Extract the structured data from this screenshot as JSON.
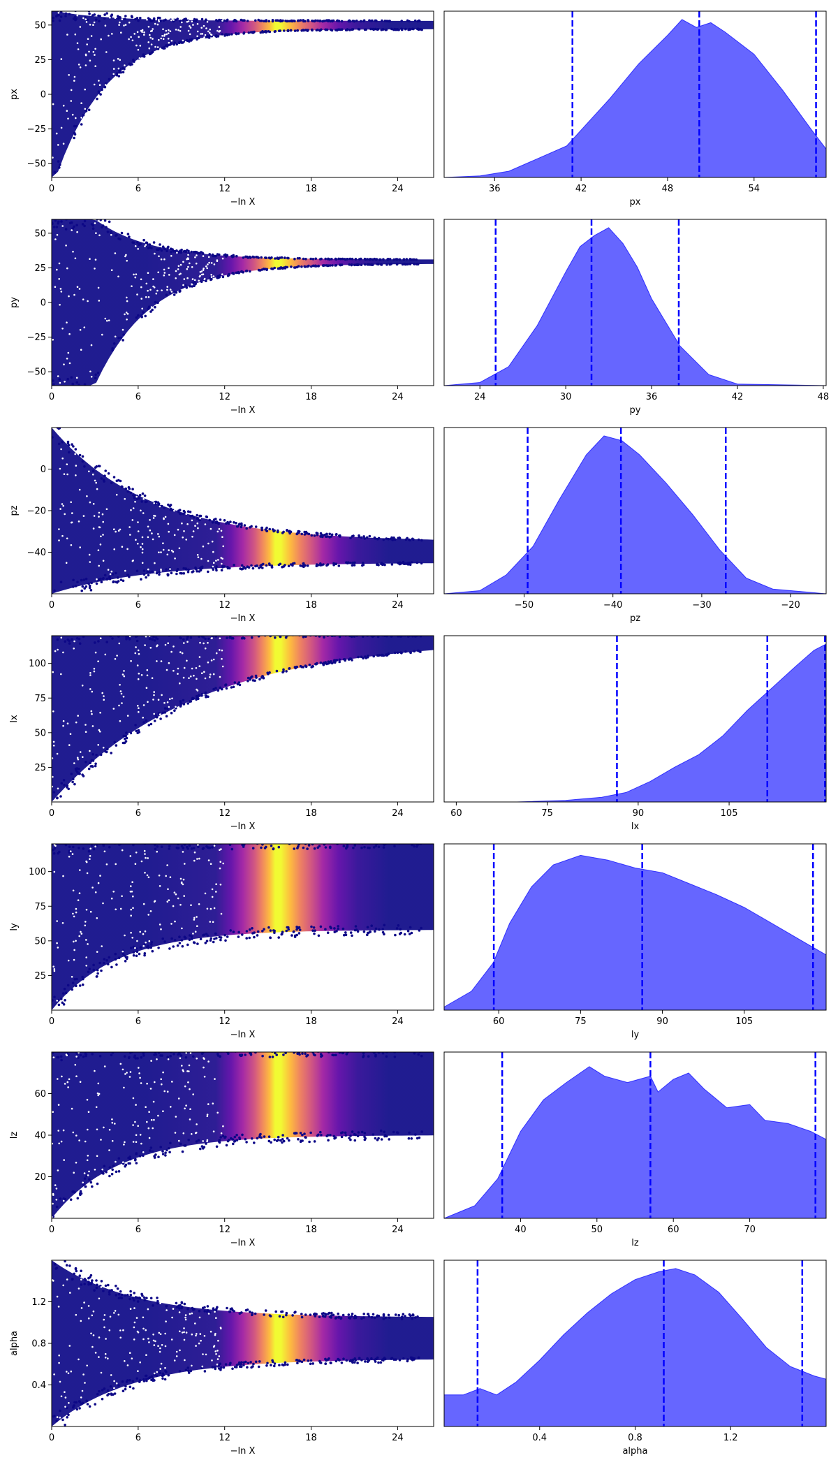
{
  "chart_data": [
    {
      "type": "scatter",
      "ylabel": "px",
      "xlabel": "−ln X",
      "xlim": [
        0,
        26.5
      ],
      "ylim": [
        -60,
        60
      ],
      "xticks": [
        0,
        6,
        12,
        18,
        24
      ],
      "yticks": [
        50,
        25,
        0,
        -25,
        -50
      ],
      "envelope": {
        "start_x": 0.3,
        "lower_start": -60,
        "lower_end": 47,
        "upper_start": 60,
        "upper_end": 53,
        "rate": 0.28
      },
      "colormap_peak_x": 15.5,
      "colormap": "plasma"
    },
    {
      "type": "area",
      "xlabel": "px",
      "xlim": [
        32.5,
        59
      ],
      "xticks": [
        36,
        42,
        48,
        54
      ],
      "quantiles": [
        41.4,
        50.2,
        58.3
      ],
      "density": [
        [
          32.5,
          0.0
        ],
        [
          35,
          0.01
        ],
        [
          37,
          0.04
        ],
        [
          39,
          0.12
        ],
        [
          41,
          0.2
        ],
        [
          42,
          0.3
        ],
        [
          44,
          0.5
        ],
        [
          46,
          0.72
        ],
        [
          48,
          0.9
        ],
        [
          49,
          1.0
        ],
        [
          50,
          0.95
        ],
        [
          51,
          0.98
        ],
        [
          52,
          0.92
        ],
        [
          54,
          0.78
        ],
        [
          56,
          0.55
        ],
        [
          58,
          0.3
        ],
        [
          59,
          0.18
        ]
      ]
    },
    {
      "type": "scatter",
      "ylabel": "py",
      "xlabel": "−ln X",
      "xlim": [
        0,
        26.5
      ],
      "ylim": [
        -60,
        60
      ],
      "xticks": [
        0,
        6,
        12,
        18,
        24
      ],
      "yticks": [
        50,
        25,
        0,
        -25,
        -50
      ],
      "envelope": {
        "start_x": 3,
        "lower_start": -60,
        "lower_end": 28,
        "upper_start": 60,
        "upper_end": 31,
        "rate": 0.26
      },
      "colormap_peak_x": 15.5,
      "colormap": "plasma"
    },
    {
      "type": "area",
      "xlabel": "py",
      "xlim": [
        21.5,
        48.2
      ],
      "xticks": [
        24,
        30,
        36,
        42,
        48
      ],
      "quantiles": [
        25.1,
        31.8,
        37.9
      ],
      "density": [
        [
          21.5,
          0.0
        ],
        [
          24,
          0.02
        ],
        [
          26,
          0.12
        ],
        [
          28,
          0.38
        ],
        [
          30,
          0.72
        ],
        [
          31,
          0.88
        ],
        [
          32,
          0.95
        ],
        [
          33,
          1.0
        ],
        [
          34,
          0.9
        ],
        [
          35,
          0.75
        ],
        [
          36,
          0.55
        ],
        [
          38,
          0.25
        ],
        [
          40,
          0.07
        ],
        [
          42,
          0.01
        ],
        [
          48.2,
          0.0
        ]
      ]
    },
    {
      "type": "scatter",
      "ylabel": "pz",
      "xlabel": "−ln X",
      "xlim": [
        0,
        26.5
      ],
      "ylim": [
        -60,
        20
      ],
      "xticks": [
        0,
        6,
        12,
        18,
        24
      ],
      "yticks": [
        0,
        -20,
        -40
      ],
      "envelope": {
        "start_x": 0,
        "lower_start": -60,
        "lower_end": -45,
        "upper_start": 20,
        "upper_end": -35,
        "rate": 0.15
      },
      "colormap_peak_x": 15.5,
      "colormap": "plasma"
    },
    {
      "type": "area",
      "xlabel": "pz",
      "xlim": [
        -59,
        -16
      ],
      "xticks": [
        -50,
        -40,
        -30,
        -20
      ],
      "quantiles": [
        -49.6,
        -39.1,
        -27.3
      ],
      "density": [
        [
          -59,
          0.0
        ],
        [
          -55,
          0.02
        ],
        [
          -52,
          0.12
        ],
        [
          -49,
          0.3
        ],
        [
          -46,
          0.6
        ],
        [
          -43,
          0.88
        ],
        [
          -41,
          1.0
        ],
        [
          -39,
          0.97
        ],
        [
          -37,
          0.88
        ],
        [
          -34,
          0.7
        ],
        [
          -31,
          0.5
        ],
        [
          -28,
          0.28
        ],
        [
          -25,
          0.1
        ],
        [
          -22,
          0.03
        ],
        [
          -16,
          0.0
        ]
      ]
    },
    {
      "type": "scatter",
      "ylabel": "lx",
      "xlabel": "−ln X",
      "xlim": [
        0,
        26.5
      ],
      "ylim": [
        0,
        120
      ],
      "xticks": [
        0,
        6,
        12,
        18,
        24
      ],
      "yticks": [
        100,
        75,
        50,
        25
      ],
      "envelope": {
        "start_x": 0,
        "lower_start": 0,
        "lower_end": 118,
        "upper_start": 120,
        "upper_end": 120,
        "rate": 0.1
      },
      "colormap_peak_x": 15.5,
      "colormap": "plasma"
    },
    {
      "type": "area",
      "xlabel": "lx",
      "xlim": [
        58,
        121
      ],
      "xticks": [
        60,
        75,
        90,
        105
      ],
      "quantiles": [
        86.5,
        111.3,
        120.8
      ],
      "density": [
        [
          58,
          0.0
        ],
        [
          70,
          0.0
        ],
        [
          78,
          0.01
        ],
        [
          84,
          0.03
        ],
        [
          88,
          0.06
        ],
        [
          92,
          0.13
        ],
        [
          96,
          0.22
        ],
        [
          100,
          0.3
        ],
        [
          104,
          0.42
        ],
        [
          108,
          0.58
        ],
        [
          112,
          0.72
        ],
        [
          116,
          0.86
        ],
        [
          119,
          0.96
        ],
        [
          121,
          1.0
        ]
      ]
    },
    {
      "type": "scatter",
      "ylabel": "ly",
      "xlabel": "−ln X",
      "xlim": [
        0,
        26.5
      ],
      "ylim": [
        0,
        120
      ],
      "xticks": [
        0,
        6,
        12,
        18,
        24
      ],
      "yticks": [
        100,
        75,
        50,
        25
      ],
      "envelope": {
        "start_x": 0,
        "lower_start": 0,
        "lower_end": 58,
        "upper_start": 120,
        "upper_end": 120,
        "rate": 0.22
      },
      "colormap_peak_x": 15.5,
      "colormap": "plasma"
    },
    {
      "type": "area",
      "xlabel": "ly",
      "xlim": [
        50,
        120
      ],
      "xticks": [
        60,
        75,
        90,
        105
      ],
      "quantiles": [
        59.1,
        86.3,
        117.6
      ],
      "density": [
        [
          50,
          0.02
        ],
        [
          55,
          0.12
        ],
        [
          59,
          0.3
        ],
        [
          62,
          0.55
        ],
        [
          66,
          0.78
        ],
        [
          70,
          0.92
        ],
        [
          75,
          0.98
        ],
        [
          80,
          0.95
        ],
        [
          85,
          0.9
        ],
        [
          90,
          0.87
        ],
        [
          95,
          0.8
        ],
        [
          100,
          0.73
        ],
        [
          105,
          0.65
        ],
        [
          110,
          0.55
        ],
        [
          115,
          0.45
        ],
        [
          120,
          0.35
        ]
      ]
    },
    {
      "type": "scatter",
      "ylabel": "lz",
      "xlabel": "−ln X",
      "xlim": [
        0,
        26.5
      ],
      "ylim": [
        0,
        80
      ],
      "xticks": [
        0,
        6,
        12,
        18,
        24
      ],
      "yticks": [
        60,
        40,
        20
      ],
      "envelope": {
        "start_x": 0,
        "lower_start": 0,
        "lower_end": 40,
        "upper_start": 80,
        "upper_end": 80,
        "rate": 0.22
      },
      "colormap_peak_x": 15.5,
      "colormap": "plasma"
    },
    {
      "type": "area",
      "xlabel": "lz",
      "xlim": [
        30,
        80
      ],
      "xticks": [
        40,
        50,
        60,
        70
      ],
      "quantiles": [
        37.6,
        57.0,
        78.6
      ],
      "density": [
        [
          30,
          0.0
        ],
        [
          34,
          0.08
        ],
        [
          37,
          0.25
        ],
        [
          40,
          0.55
        ],
        [
          43,
          0.75
        ],
        [
          46,
          0.86
        ],
        [
          49,
          0.96
        ],
        [
          51,
          0.9
        ],
        [
          54,
          0.86
        ],
        [
          57,
          0.9
        ],
        [
          58,
          0.8
        ],
        [
          60,
          0.88
        ],
        [
          62,
          0.92
        ],
        [
          64,
          0.82
        ],
        [
          67,
          0.7
        ],
        [
          70,
          0.72
        ],
        [
          72,
          0.62
        ],
        [
          75,
          0.6
        ],
        [
          78,
          0.55
        ],
        [
          80,
          0.5
        ]
      ]
    },
    {
      "type": "scatter",
      "ylabel": "alpha",
      "xlabel": "−ln X",
      "xlim": [
        0,
        26.5
      ],
      "ylim": [
        0,
        1.6
      ],
      "xticks": [
        0,
        6,
        12,
        18,
        24
      ],
      "yticks": [
        1.2,
        0.8,
        0.4
      ],
      "envelope": {
        "start_x": 0,
        "lower_start": 0,
        "lower_end": 0.65,
        "upper_start": 1.6,
        "upper_end": 1.05,
        "rate": 0.18
      },
      "colormap_peak_x": 15.5,
      "colormap": "plasma"
    },
    {
      "type": "area",
      "xlabel": "alpha",
      "xlim": [
        0,
        1.6
      ],
      "xticks": [
        0.4,
        0.8,
        1.2
      ],
      "quantiles": [
        0.14,
        0.92,
        1.5
      ],
      "density": [
        [
          0,
          0.2
        ],
        [
          0.08,
          0.2
        ],
        [
          0.15,
          0.24
        ],
        [
          0.22,
          0.2
        ],
        [
          0.3,
          0.28
        ],
        [
          0.4,
          0.42
        ],
        [
          0.5,
          0.58
        ],
        [
          0.6,
          0.72
        ],
        [
          0.7,
          0.84
        ],
        [
          0.8,
          0.93
        ],
        [
          0.9,
          0.98
        ],
        [
          0.97,
          1.0
        ],
        [
          1.05,
          0.96
        ],
        [
          1.15,
          0.85
        ],
        [
          1.25,
          0.68
        ],
        [
          1.35,
          0.5
        ],
        [
          1.45,
          0.38
        ],
        [
          1.55,
          0.32
        ],
        [
          1.6,
          0.3
        ]
      ]
    }
  ]
}
